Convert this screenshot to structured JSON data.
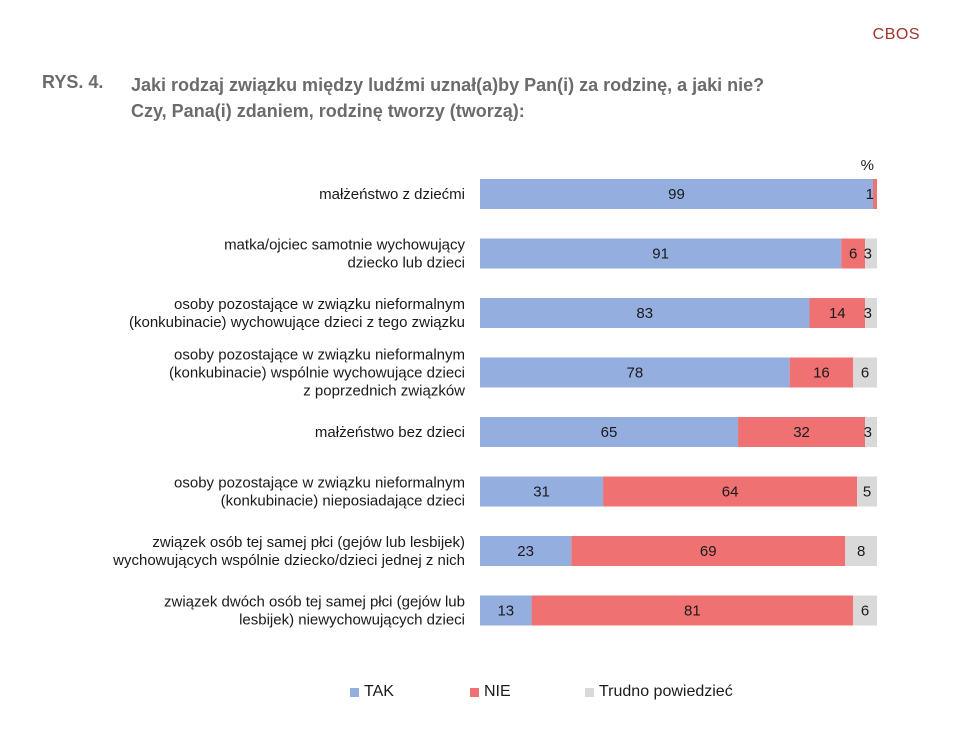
{
  "header": {
    "brand": "CBOS",
    "figure_label": "RYS. 4.",
    "title_line1": "Jaki rodzaj związku między ludźmi uznał(a)by Pan(i) za rodzinę, a jaki nie?",
    "title_line2": "Czy, Pana(i) zdaniem, rodzinę tworzy (tworzą):"
  },
  "colors": {
    "tak": "#94aee0",
    "nie": "#ef7171",
    "trudno": "#d9d9d9",
    "brand": "#a0342c"
  },
  "chart_data": {
    "type": "bar",
    "orientation": "horizontal",
    "stacked": true,
    "unit_label": "%",
    "xlim": [
      0,
      100
    ],
    "categories": [
      [
        "małżeństwo z dziećmi"
      ],
      [
        "matka/ojciec samotnie wychowujący",
        "dziecko lub dzieci"
      ],
      [
        "osoby pozostające w związku nieformalnym",
        "(konkubinacie) wychowujące dzieci z tego związku"
      ],
      [
        "osoby pozostające w związku nieformalnym",
        "(konkubinacie) wspólnie wychowujące dzieci",
        "z poprzednich związków"
      ],
      [
        "małżeństwo bez dzieci"
      ],
      [
        "osoby pozostające w związku nieformalnym",
        "(konkubinacie) nieposiadające dzieci"
      ],
      [
        "związek osób tej samej płci (gejów lub lesbijek)",
        "wychowujących wspólnie dziecko/dzieci jednej z nich"
      ],
      [
        "związek dwóch osób tej samej płci (gejów lub",
        "lesbijek) niewychowujących dzieci"
      ]
    ],
    "series": [
      {
        "name": "TAK",
        "values": [
          99,
          91,
          83,
          78,
          65,
          31,
          23,
          13
        ]
      },
      {
        "name": "NIE",
        "values": [
          1,
          6,
          14,
          16,
          32,
          64,
          69,
          81
        ]
      },
      {
        "name": "Trudno powiedzieć",
        "values": [
          0,
          3,
          3,
          6,
          3,
          5,
          8,
          6
        ]
      }
    ],
    "legend_position": "bottom",
    "grid": false
  }
}
